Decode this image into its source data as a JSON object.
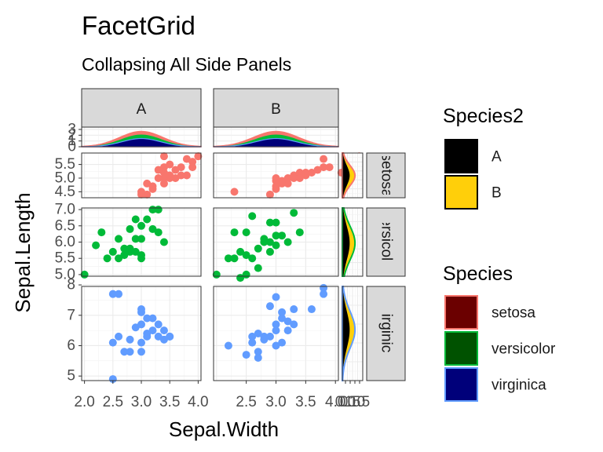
{
  "title": "FacetGrid",
  "subtitle": "Collapsing All Side Panels",
  "chart_data": {
    "type": "scatter",
    "title": "FacetGrid",
    "subtitle": "Collapsing All Side Panels",
    "xlabel": "Sepal.Width",
    "ylabel": "Sepal.Length",
    "x_ticks": [
      "2.0",
      "2.5",
      "3.0",
      "3.5",
      "4.0"
    ],
    "xlim": [
      1.95,
      4.05
    ],
    "columns": [
      "A",
      "B"
    ],
    "rows": [
      {
        "label": "setosa",
        "color": "#F8766D",
        "ylim": [
          4.28,
          5.92
        ],
        "ticks": [
          "4.5",
          "5.0",
          "5.5"
        ],
        "tick_values": [
          4.5,
          5.0,
          5.5
        ]
      },
      {
        "label": "versicolor",
        "color": "#00BA38",
        "ylim": [
          4.95,
          7.05
        ],
        "ticks": [
          "5.0",
          "5.5",
          "6.0",
          "6.5",
          "7.0"
        ],
        "tick_values": [
          5.0,
          5.5,
          6.0,
          6.5,
          7.0
        ]
      },
      {
        "label": "virginica",
        "color": "#619CFF",
        "ylim": [
          4.85,
          7.95
        ],
        "ticks": [
          "5",
          "6",
          "7",
          "8"
        ],
        "tick_values": [
          5,
          6,
          7,
          8
        ]
      }
    ],
    "top_density_ticks": [
      "0",
      "1",
      "2",
      "3"
    ],
    "side_density_ticks": [
      "0.0",
      "0.5",
      "1.0",
      "1.5"
    ],
    "points": {
      "setosa": {
        "A": [
          [
            3.0,
            4.4
          ],
          [
            3.1,
            4.4
          ],
          [
            3.0,
            4.5
          ],
          [
            3.2,
            4.6
          ],
          [
            3.2,
            4.7
          ],
          [
            3.1,
            4.8
          ],
          [
            3.4,
            4.8
          ],
          [
            3.4,
            5.0
          ],
          [
            3.5,
            5.0
          ],
          [
            3.3,
            5.0
          ],
          [
            3.5,
            5.1
          ],
          [
            3.8,
            5.1
          ],
          [
            3.7,
            5.1
          ],
          [
            3.4,
            5.2
          ],
          [
            3.4,
            5.4
          ],
          [
            3.9,
            5.4
          ],
          [
            3.7,
            5.4
          ],
          [
            3.5,
            5.5
          ],
          [
            3.8,
            5.7
          ],
          [
            3.4,
            5.8
          ],
          [
            4.0,
            5.8
          ],
          [
            3.6,
            5.0
          ],
          [
            3.9,
            5.6
          ],
          [
            3.3,
            5.3
          ],
          [
            3.6,
            5.3
          ]
        ],
        "B": [
          [
            2.3,
            4.5
          ],
          [
            2.9,
            4.4
          ],
          [
            3.0,
            4.6
          ],
          [
            3.0,
            4.7
          ],
          [
            3.1,
            4.8
          ],
          [
            3.0,
            4.9
          ],
          [
            3.2,
            4.8
          ],
          [
            3.0,
            5.0
          ],
          [
            3.2,
            5.0
          ],
          [
            3.3,
            5.1
          ],
          [
            3.4,
            5.1
          ],
          [
            3.5,
            5.1
          ],
          [
            3.1,
            4.9
          ],
          [
            3.4,
            5.2
          ],
          [
            3.5,
            5.2
          ],
          [
            3.4,
            5.0
          ],
          [
            3.3,
            5.0
          ],
          [
            3.6,
            5.2
          ],
          [
            3.7,
            5.3
          ],
          [
            3.8,
            5.4
          ],
          [
            3.9,
            5.4
          ],
          [
            4.1,
            5.2
          ],
          [
            4.2,
            5.5
          ],
          [
            3.8,
            5.7
          ],
          [
            4.4,
            5.8
          ]
        ]
      },
      "versicolor": {
        "A": [
          [
            2.0,
            5.0
          ],
          [
            2.2,
            5.9
          ],
          [
            2.3,
            6.3
          ],
          [
            2.5,
            5.7
          ],
          [
            2.6,
            5.5
          ],
          [
            2.7,
            5.8
          ],
          [
            2.7,
            5.6
          ],
          [
            2.8,
            5.7
          ],
          [
            2.8,
            5.8
          ],
          [
            2.8,
            6.4
          ],
          [
            2.9,
            5.7
          ],
          [
            2.9,
            6.1
          ],
          [
            2.9,
            6.7
          ],
          [
            3.0,
            5.6
          ],
          [
            3.0,
            6.1
          ],
          [
            3.0,
            6.5
          ],
          [
            3.1,
            6.7
          ],
          [
            3.2,
            6.4
          ],
          [
            3.2,
            7.0
          ],
          [
            3.3,
            6.3
          ],
          [
            3.4,
            6.0
          ],
          [
            3.3,
            7.0
          ],
          [
            3.0,
            5.5
          ],
          [
            2.6,
            6.1
          ],
          [
            2.4,
            5.5
          ]
        ],
        "B": [
          [
            2.0,
            5.0
          ],
          [
            2.2,
            5.5
          ],
          [
            2.3,
            5.5
          ],
          [
            2.3,
            6.3
          ],
          [
            2.4,
            5.7
          ],
          [
            2.4,
            4.9
          ],
          [
            2.5,
            5.6
          ],
          [
            2.5,
            6.3
          ],
          [
            2.6,
            5.5
          ],
          [
            2.7,
            5.8
          ],
          [
            2.7,
            5.2
          ],
          [
            2.8,
            6.0
          ],
          [
            2.8,
            6.1
          ],
          [
            2.9,
            5.7
          ],
          [
            2.9,
            6.0
          ],
          [
            2.9,
            6.6
          ],
          [
            3.0,
            5.9
          ],
          [
            3.0,
            6.2
          ],
          [
            3.0,
            6.6
          ],
          [
            3.1,
            6.2
          ],
          [
            3.2,
            6.0
          ],
          [
            3.3,
            6.9
          ],
          [
            3.4,
            6.3
          ],
          [
            2.6,
            6.8
          ],
          [
            2.5,
            5.0
          ]
        ]
      },
      "virginica": {
        "A": [
          [
            2.5,
            4.9
          ],
          [
            2.5,
            6.1
          ],
          [
            2.5,
            7.7
          ],
          [
            2.6,
            6.3
          ],
          [
            2.6,
            7.7
          ],
          [
            2.7,
            5.8
          ],
          [
            2.8,
            5.8
          ],
          [
            2.8,
            6.2
          ],
          [
            2.9,
            6.6
          ],
          [
            3.0,
            5.8
          ],
          [
            3.0,
            6.7
          ],
          [
            3.0,
            7.2
          ],
          [
            3.0,
            7.1
          ],
          [
            3.1,
            6.4
          ],
          [
            3.1,
            6.9
          ],
          [
            3.1,
            6.3
          ],
          [
            3.2,
            6.5
          ],
          [
            3.2,
            6.9
          ],
          [
            3.3,
            6.3
          ],
          [
            3.3,
            6.7
          ],
          [
            3.4,
            6.2
          ],
          [
            3.4,
            6.5
          ],
          [
            3.5,
            6.3
          ],
          [
            3.5,
            6.3
          ],
          [
            3.0,
            6.1
          ]
        ],
        "B": [
          [
            2.2,
            6.0
          ],
          [
            2.5,
            5.7
          ],
          [
            2.6,
            6.1
          ],
          [
            2.6,
            6.3
          ],
          [
            2.7,
            5.8
          ],
          [
            2.7,
            6.4
          ],
          [
            2.7,
            5.6
          ],
          [
            2.8,
            6.3
          ],
          [
            2.8,
            6.2
          ],
          [
            2.9,
            6.3
          ],
          [
            2.9,
            7.3
          ],
          [
            3.0,
            6.5
          ],
          [
            3.0,
            6.0
          ],
          [
            3.0,
            6.7
          ],
          [
            3.0,
            7.6
          ],
          [
            3.1,
            6.9
          ],
          [
            3.1,
            6.1
          ],
          [
            3.1,
            7.1
          ],
          [
            3.2,
            6.8
          ],
          [
            3.2,
            6.5
          ],
          [
            3.3,
            7.2
          ],
          [
            3.3,
            6.7
          ],
          [
            3.6,
            7.2
          ],
          [
            3.8,
            7.7
          ],
          [
            3.8,
            7.9
          ]
        ]
      }
    },
    "legends": [
      {
        "title": "Species2",
        "items": [
          {
            "label": "A",
            "fill": "#000000",
            "stroke": "#000000"
          },
          {
            "label": "B",
            "fill": "#FFCF0A",
            "stroke": "#000000"
          }
        ]
      },
      {
        "title": "Species",
        "items": [
          {
            "label": "setosa",
            "fill": "#6B0000",
            "stroke": "#F8766D"
          },
          {
            "label": "versicolor",
            "fill": "#005200",
            "stroke": "#00BA38"
          },
          {
            "label": "virginica",
            "fill": "#00007A",
            "stroke": "#619CFF"
          }
        ]
      }
    ]
  }
}
